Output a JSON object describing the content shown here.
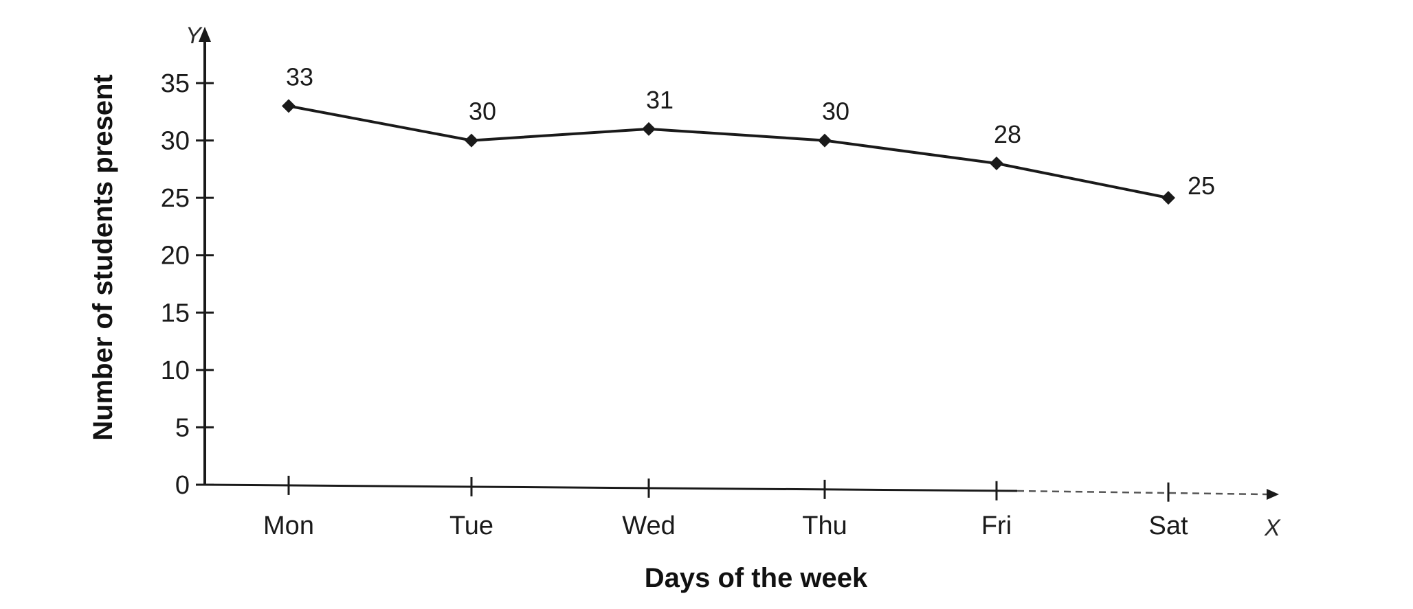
{
  "chart_data": {
    "type": "line",
    "categories": [
      "Mon",
      "Tue",
      "Wed",
      "Thu",
      "Fri",
      "Sat"
    ],
    "values": [
      33,
      30,
      31,
      30,
      28,
      25
    ],
    "data_labels": [
      "33",
      "30",
      "31",
      "30",
      "28",
      "25"
    ],
    "xlabel": "Days of the week",
    "ylabel": "Number of students present",
    "x_axis_letter": "X",
    "y_axis_letter": "Y",
    "yticks": [
      0,
      5,
      10,
      15,
      20,
      25,
      30,
      35
    ],
    "ylim": [
      0,
      35
    ],
    "grid": false,
    "legend": "none",
    "colors": {
      "line": "#1a1a1a",
      "background": "#ffffff"
    }
  }
}
